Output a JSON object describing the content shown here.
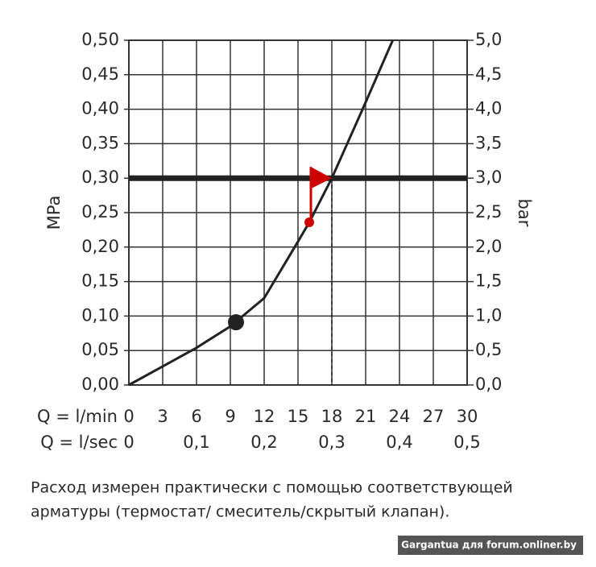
{
  "chart_data": {
    "type": "line",
    "y_label": "MPa",
    "y2_label": "bar",
    "x_label": "Q = l/min",
    "x2_label": "Q = l/sec",
    "xlim": [
      0,
      30
    ],
    "xticks": [
      0,
      3,
      6,
      9,
      12,
      15,
      18,
      21,
      24,
      27,
      30
    ],
    "x2lim": [
      0,
      0.5
    ],
    "x2ticks": [
      0,
      {
        "value": 0.1,
        "label": "0,1"
      },
      {
        "value": 0.2,
        "label": "0,2"
      },
      {
        "value": 0.3,
        "label": "0,3"
      },
      {
        "value": 0.4,
        "label": "0,4"
      },
      {
        "value": 0.5,
        "label": "0,5"
      }
    ],
    "ylim": [
      0,
      0.5
    ],
    "yticks": [
      {
        "value": 0,
        "label": "0,00"
      },
      {
        "value": 0.05,
        "label": "0,05"
      },
      {
        "value": 0.1,
        "label": "0,10"
      },
      {
        "value": 0.15,
        "label": "0,15"
      },
      {
        "value": 0.2,
        "label": "0,20"
      },
      {
        "value": 0.25,
        "label": "0,25"
      },
      {
        "value": 0.3,
        "label": "0,30"
      },
      {
        "value": 0.35,
        "label": "0,35"
      },
      {
        "value": 0.4,
        "label": "0,40"
      },
      {
        "value": 0.45,
        "label": "0,45"
      },
      {
        "value": 0.5,
        "label": "0,50"
      }
    ],
    "y2lim": [
      0,
      5
    ],
    "y2ticks": [
      {
        "value": 0,
        "label": "0,0"
      },
      {
        "value": 0.5,
        "label": "0,5"
      },
      {
        "value": 1,
        "label": "1,0"
      },
      {
        "value": 1.5,
        "label": "1,5"
      },
      {
        "value": 2,
        "label": "2,0"
      },
      {
        "value": 2.5,
        "label": "2,5"
      },
      {
        "value": 3,
        "label": "3,0"
      },
      {
        "value": 3.5,
        "label": "3,5"
      },
      {
        "value": 4,
        "label": "4,0"
      },
      {
        "value": 4.5,
        "label": "4,5"
      },
      {
        "value": 5,
        "label": "5,0"
      }
    ],
    "grid": true,
    "series": [
      {
        "color": "#222222",
        "x": [
          0,
          3,
          6,
          9,
          12,
          15,
          16,
          18,
          21,
          23.4
        ],
        "values": [
          0,
          0.027,
          0.054,
          0.085,
          0.126,
          0.208,
          0.236,
          0.3,
          0.41,
          0.5
        ]
      }
    ],
    "reference_line": {
      "y": 0.3,
      "color": "#222222"
    },
    "operating_point": {
      "x": 18,
      "y": 0.3,
      "color": "#cc0000"
    },
    "red_point": {
      "x": 16,
      "y": 0.236,
      "color": "#cc0000"
    },
    "black_point": {
      "x": 9.5,
      "y": 0.091,
      "color": "#222222"
    },
    "caption": [
      "Расход измерен практически с помощью соответствующей",
      "арматуры (термостат/ смеситель/скрытый клапан)."
    ],
    "watermark": "Gargantua для forum.onliner.by"
  }
}
